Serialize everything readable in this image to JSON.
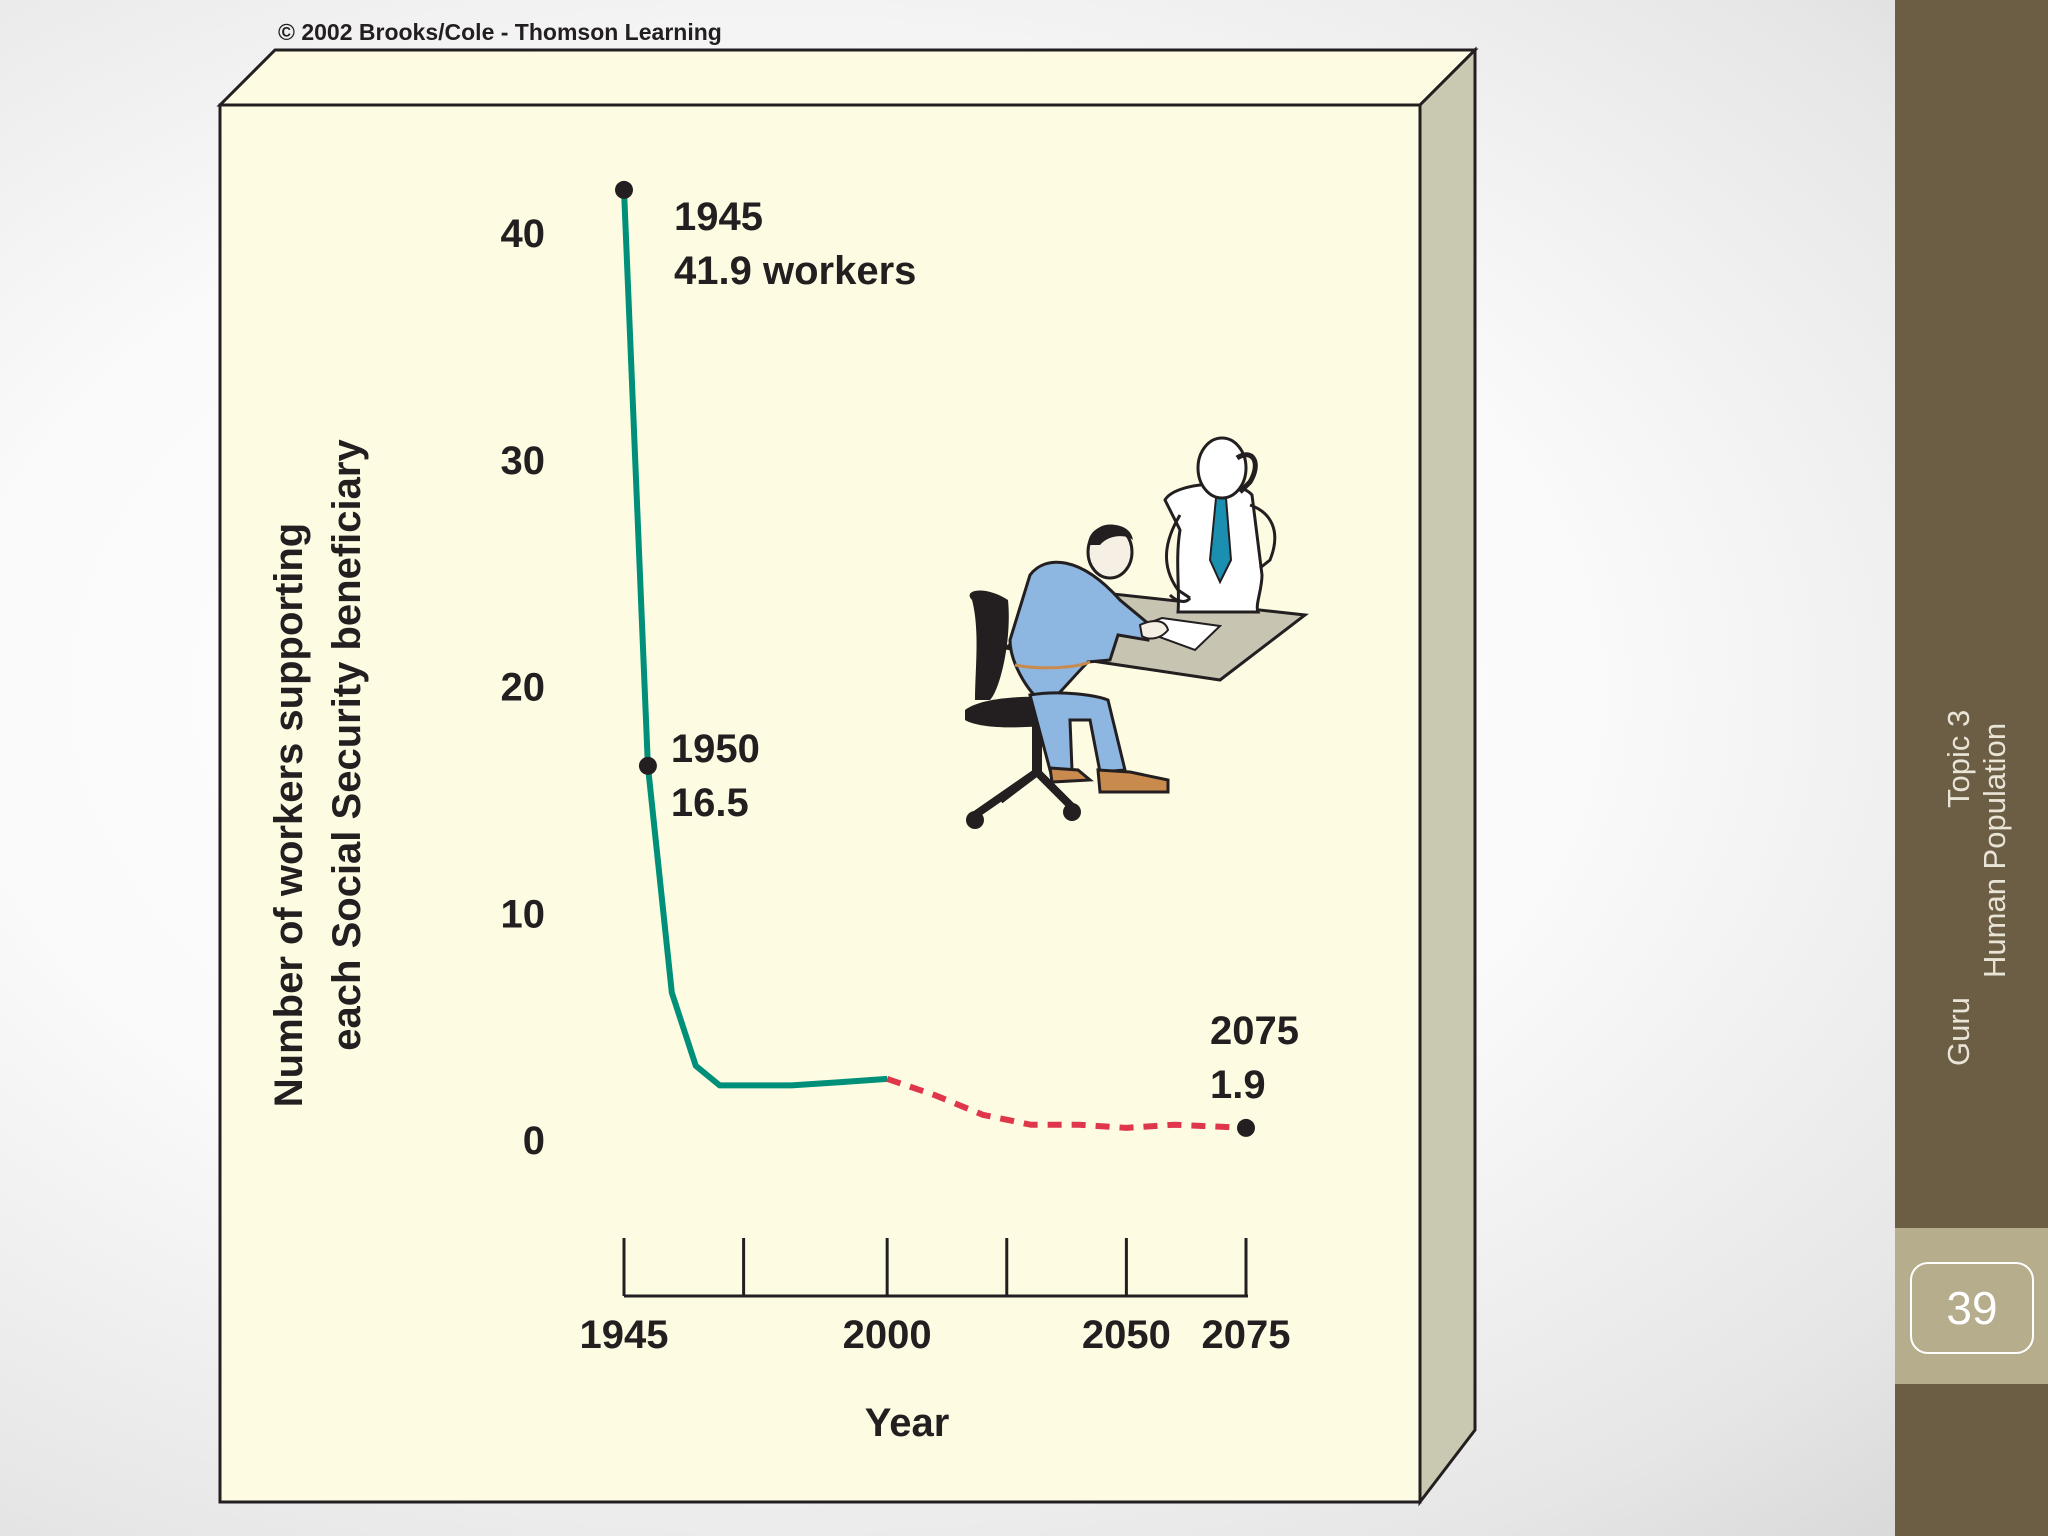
{
  "copyright": "© 2002 Brooks/Cole - Thomson Learning",
  "sidebar": {
    "line1": "Topic 3",
    "line2": "Human Population",
    "author": "Guru",
    "page_number": "39"
  },
  "colors": {
    "panel": "#fdfce3",
    "panel_side": "#c9c8b0",
    "actual_line": "#00907a",
    "projected_line": "#e0364b",
    "sidebar": "#6b5e45",
    "page_box": "#b5ad8c"
  },
  "illustration": "office-workers-clipart",
  "chart_data": {
    "type": "line",
    "title": "",
    "xlabel": "Year",
    "ylabel_lines": [
      "Number of workers supporting",
      "each Social Security beneficiary"
    ],
    "x_ticks": [
      "1945",
      "2000",
      "2050",
      "2075"
    ],
    "y_ticks": [
      0,
      10,
      20,
      30,
      40
    ],
    "xlim": [
      1945,
      2075
    ],
    "ylim": [
      0,
      40
    ],
    "series": [
      {
        "style": "solid",
        "color": "#00907a",
        "points": [
          [
            1945,
            41.9
          ],
          [
            1950,
            16.5
          ],
          [
            1955,
            6.5
          ],
          [
            1960,
            3.8
          ],
          [
            1965,
            3.2
          ],
          [
            1970,
            3.2
          ],
          [
            1980,
            3.2
          ],
          [
            1990,
            3.3
          ],
          [
            2000,
            3.4
          ]
        ]
      },
      {
        "style": "dashed",
        "color": "#e0364b",
        "points": [
          [
            2000,
            3.4
          ],
          [
            2010,
            2.9
          ],
          [
            2020,
            2.3
          ],
          [
            2030,
            2.0
          ],
          [
            2040,
            2.0
          ],
          [
            2050,
            1.9
          ],
          [
            2060,
            2.0
          ],
          [
            2075,
            1.9
          ]
        ]
      }
    ],
    "annotations": [
      {
        "x": 1945,
        "y": 41.9,
        "lines": [
          "1945",
          "41.9 workers"
        ]
      },
      {
        "x": 1950,
        "y": 16.5,
        "lines": [
          "1950",
          "16.5"
        ]
      },
      {
        "x": 2075,
        "y": 1.9,
        "lines": [
          "2075",
          "1.9"
        ]
      }
    ]
  }
}
